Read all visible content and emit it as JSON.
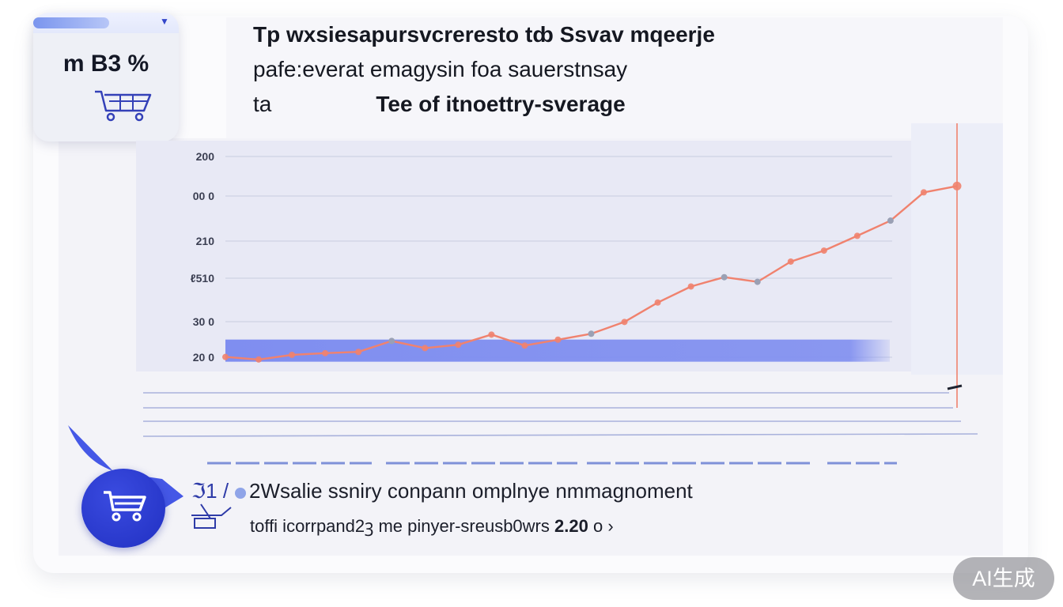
{
  "widget": {
    "label": "m B3 %",
    "icon": "cart-icon"
  },
  "title": {
    "line1": "Tp wxsiesapursvcreresto tȸ Ssvav mqeerje",
    "line2": "pafe:everat emagysin foa sauerstnsay",
    "line3_left": "ta",
    "line3_right": "Tee of itnoettry-sverage"
  },
  "chart_data": {
    "type": "line",
    "yticks": [
      "200",
      "00 0",
      "210",
      "ℓ510",
      "30 0",
      "20 0"
    ],
    "ylim": [
      0,
      5
    ],
    "x": [
      0,
      1,
      2,
      3,
      4,
      5,
      6,
      7,
      8,
      9,
      10,
      11,
      12,
      13,
      14,
      15,
      16,
      17,
      18,
      19,
      20,
      21,
      22
    ],
    "series": [
      {
        "values": [
          0.25,
          0.19,
          0.3,
          0.34,
          0.37,
          0.63,
          0.46,
          0.54,
          0.78,
          0.52,
          0.66,
          0.8,
          1.08,
          1.54,
          1.92,
          2.14,
          2.03,
          2.51,
          2.77,
          3.12,
          3.48,
          4.15,
          4.3
        ],
        "color": "#f0826e"
      }
    ],
    "band_value": 0.4,
    "colors": {
      "line": "#f0826e",
      "band": "#7f8ef0",
      "grid": "#c9cde0",
      "marker": "#9aa0b4"
    }
  },
  "footer": {
    "prefix": "ℑ1 /",
    "number": "2",
    "line1": "Wsalie ssniry conpann omplnye nmmagnoment",
    "line2_text": "toffi icorrpand2ꝫ  me pinyer-sreusb0wrs",
    "line2_value": "2.20",
    "line2_suffix": "o ›"
  },
  "badge": {
    "text": "AI生成"
  }
}
